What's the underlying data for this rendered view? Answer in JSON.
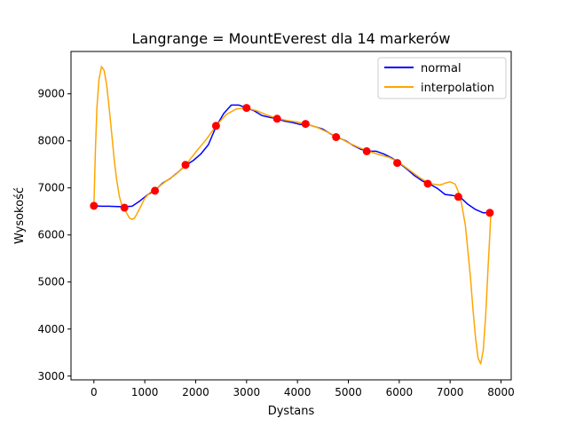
{
  "chart_data": {
    "type": "line",
    "title": "Langrange = MountEverest dla 14 markerów",
    "xlabel": "Dystans",
    "ylabel": "Wysokość",
    "xlim": [
      -450,
      8200
    ],
    "ylim": [
      2920,
      9900
    ],
    "xticks": [
      0,
      1000,
      2000,
      3000,
      4000,
      5000,
      6000,
      7000,
      8000
    ],
    "yticks": [
      3000,
      4000,
      5000,
      6000,
      7000,
      8000,
      9000
    ],
    "grid": false,
    "legend_position": "top-right",
    "series": [
      {
        "name": "normal",
        "color": "#0000ff",
        "x": [
          0,
          150,
          300,
          450,
          600,
          750,
          900,
          1050,
          1200,
          1350,
          1500,
          1650,
          1800,
          1950,
          2100,
          2250,
          2400,
          2550,
          2700,
          2850,
          3000,
          3150,
          3300,
          3450,
          3600,
          3750,
          3900,
          4050,
          4200,
          4350,
          4500,
          4650,
          4800,
          4950,
          5100,
          5250,
          5400,
          5550,
          5700,
          5850,
          6000,
          6150,
          6300,
          6450,
          6600,
          6750,
          6900,
          7050,
          7200,
          7350,
          7500,
          7650,
          7800
        ],
        "y": [
          6620,
          6610,
          6610,
          6605,
          6600,
          6610,
          6720,
          6850,
          6950,
          7100,
          7200,
          7330,
          7480,
          7580,
          7720,
          7920,
          8300,
          8580,
          8760,
          8760,
          8700,
          8640,
          8540,
          8500,
          8470,
          8420,
          8390,
          8350,
          8350,
          8300,
          8250,
          8150,
          8070,
          8000,
          7900,
          7820,
          7780,
          7780,
          7720,
          7640,
          7530,
          7400,
          7260,
          7150,
          7080,
          6990,
          6860,
          6840,
          6800,
          6650,
          6540,
          6470,
          6470
        ]
      },
      {
        "name": "interpolation",
        "color": "#ffa500",
        "x": [
          0,
          30,
          60,
          100,
          150,
          200,
          250,
          300,
          350,
          400,
          450,
          500,
          550,
          600,
          650,
          700,
          750,
          800,
          900,
          1000,
          1100,
          1200,
          1400,
          1600,
          1800,
          2000,
          2200,
          2400,
          2600,
          2800,
          3000,
          3200,
          3400,
          3600,
          3800,
          4000,
          4200,
          4400,
          4600,
          4800,
          5000,
          5200,
          5400,
          5600,
          5800,
          6000,
          6200,
          6400,
          6600,
          6800,
          6900,
          7000,
          7100,
          7200,
          7300,
          7400,
          7450,
          7500,
          7550,
          7600,
          7650,
          7700,
          7750,
          7780,
          7800
        ],
        "y": [
          6620,
          7800,
          8700,
          9300,
          9580,
          9500,
          9200,
          8700,
          8150,
          7600,
          7150,
          6820,
          6630,
          6560,
          6450,
          6360,
          6330,
          6360,
          6560,
          6780,
          6900,
          6960,
          7130,
          7280,
          7480,
          7760,
          8020,
          8320,
          8560,
          8680,
          8700,
          8640,
          8550,
          8480,
          8430,
          8400,
          8350,
          8280,
          8180,
          8080,
          7960,
          7860,
          7780,
          7710,
          7650,
          7540,
          7380,
          7220,
          7090,
          7060,
          7100,
          7130,
          7080,
          6810,
          6200,
          5100,
          4400,
          3800,
          3380,
          3260,
          3550,
          4300,
          5400,
          6000,
          6480
        ]
      }
    ],
    "markers": {
      "color": "#ff0000",
      "x": [
        0,
        600,
        1200,
        1800,
        2400,
        3000,
        3600,
        4160,
        4760,
        5360,
        5960,
        6560,
        7160,
        7780
      ],
      "y": [
        6620,
        6580,
        6940,
        7490,
        8320,
        8700,
        8470,
        8360,
        8080,
        7780,
        7530,
        7090,
        6810,
        6470
      ]
    }
  }
}
